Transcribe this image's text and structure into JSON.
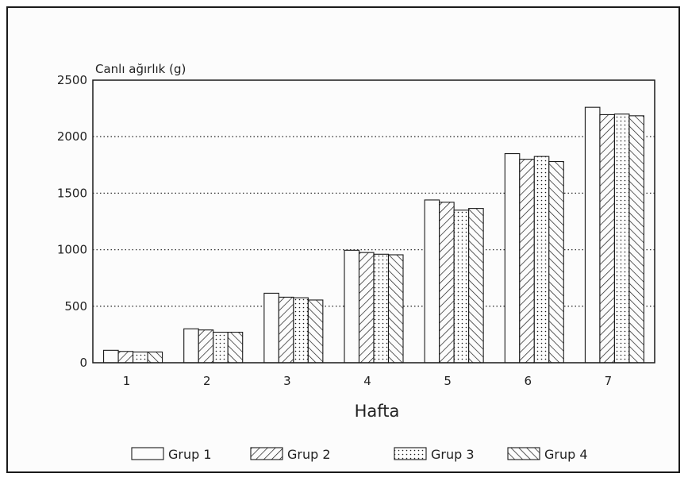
{
  "chart_data": {
    "type": "bar",
    "title": "",
    "ylabel": "Canlı ağırlık (g)",
    "xlabel": "Hafta",
    "categories": [
      "1",
      "2",
      "3",
      "4",
      "5",
      "6",
      "7"
    ],
    "ylim": [
      0,
      2500
    ],
    "yticks": [
      0,
      500,
      1000,
      1500,
      2000,
      2500
    ],
    "grid": "dotted horizontal",
    "legend_position": "bottom",
    "series": [
      {
        "name": "Grup 1",
        "pattern": "blank",
        "values": [
          110,
          300,
          615,
          995,
          1440,
          1850,
          2260
        ]
      },
      {
        "name": "Grup 2",
        "pattern": "right-hatch",
        "values": [
          100,
          290,
          580,
          975,
          1420,
          1800,
          2195
        ]
      },
      {
        "name": "Grup 3",
        "pattern": "dots",
        "values": [
          95,
          270,
          575,
          960,
          1350,
          1825,
          2200
        ]
      },
      {
        "name": "Grup 4",
        "pattern": "left-hatch",
        "values": [
          95,
          270,
          555,
          955,
          1365,
          1780,
          2185
        ]
      }
    ]
  },
  "colors": {
    "ink": "#1a1a1a",
    "grid": "#333333",
    "paper": "#fcfcfc"
  }
}
